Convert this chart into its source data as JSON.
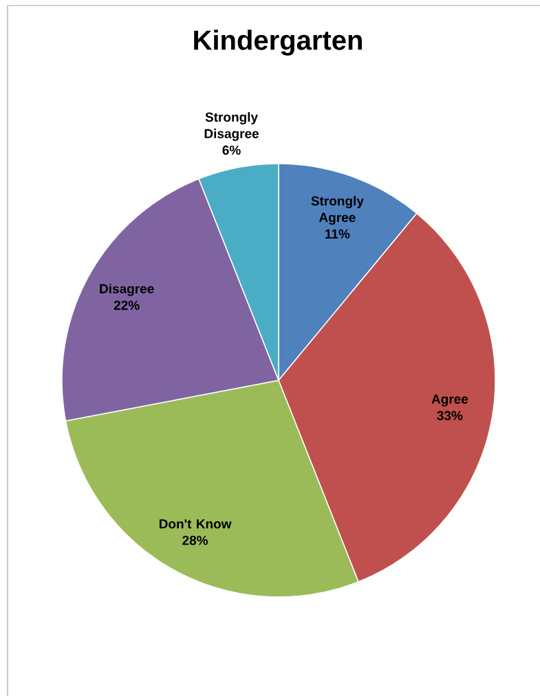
{
  "chart_data": {
    "type": "pie",
    "title": "Kindergarten",
    "categories": [
      "Strongly Agree",
      "Agree",
      "Don't Know",
      "Disagree",
      "Strongly Disagree"
    ],
    "values": [
      11,
      33,
      28,
      22,
      6
    ],
    "value_labels": [
      "11%",
      "33%",
      "28%",
      "22%",
      "6%"
    ],
    "colors": [
      "#4f81bd",
      "#c0504d",
      "#9bbb59",
      "#8064a2",
      "#4bacc6"
    ]
  }
}
